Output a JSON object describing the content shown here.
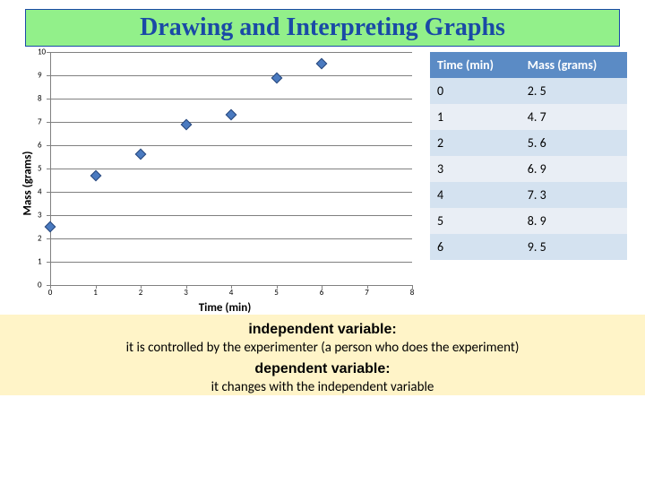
{
  "title": {
    "text": "Drawing and Interpreting Graphs",
    "background": "#92f08a",
    "border_color": "#1a4aa6",
    "text_color": "#1a4aa6",
    "fontsize": 28
  },
  "chart": {
    "type": "scatter",
    "xlabel": "Time (min)",
    "ylabel": "Mass (grams)",
    "xlim": [
      0,
      8
    ],
    "ylim": [
      0,
      10
    ],
    "xtick_step": 1,
    "ytick_step": 1,
    "grid_color": "#808080",
    "background_color": "#ffffff",
    "marker_fill": "#4a7ac0",
    "marker_border": "#27467a",
    "marker_shape": "diamond",
    "marker_size": 9,
    "tick_fontsize": 9,
    "label_fontsize": 13,
    "data": {
      "x": [
        0,
        1,
        2,
        3,
        4,
        5,
        6
      ],
      "y": [
        2.5,
        4.7,
        5.6,
        6.9,
        7.3,
        8.9,
        9.5
      ]
    }
  },
  "table": {
    "header_bg": "#5b8bc5",
    "header_text_color": "#ffffff",
    "row_even_bg": "#d4e2f0",
    "row_odd_bg": "#e9eef5",
    "text_color": "#000000",
    "columns": [
      "Time (min)",
      "Mass (grams)"
    ],
    "rows": [
      [
        "0",
        "2. 5"
      ],
      [
        "1",
        "4. 7"
      ],
      [
        "2",
        "5. 6"
      ],
      [
        "3",
        "6. 9"
      ],
      [
        "4",
        "7. 3"
      ],
      [
        "5",
        "8. 9"
      ],
      [
        "6",
        "9. 5"
      ]
    ]
  },
  "footer": {
    "box_bg": "#fff4c8",
    "indep_label": "independent variable:",
    "indep_desc": "it is controlled by the experimenter (a person who does the experiment)",
    "dep_label": "dependent variable:",
    "dep_desc": "it changes with the independent variable"
  }
}
